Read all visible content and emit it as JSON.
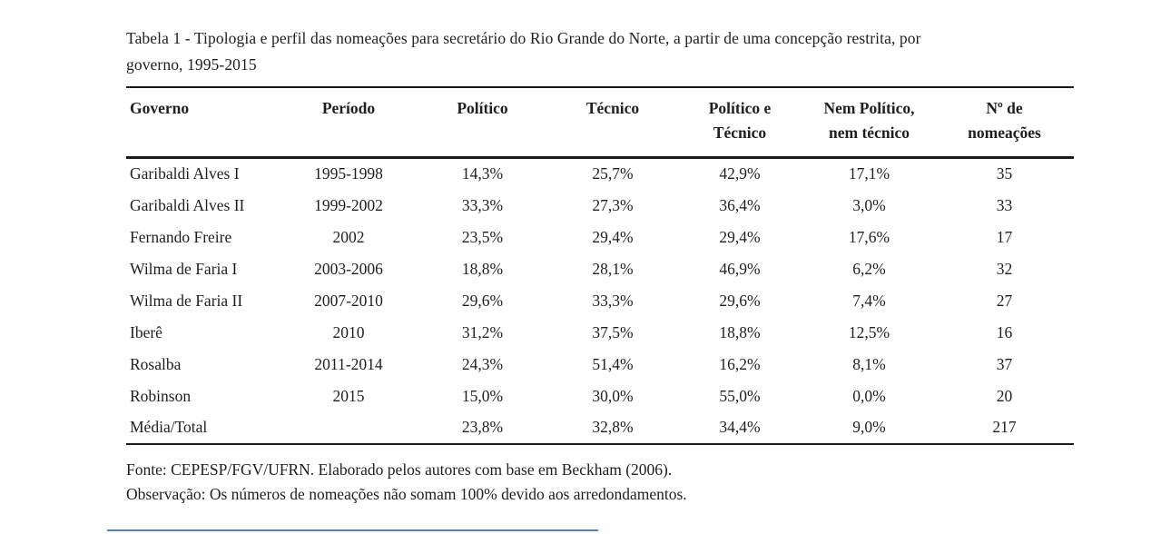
{
  "title": "Tabela 1 - Tipologia e perfil das nomeações para secretário do Rio Grande do Norte, a partir de uma concepção restrita, por\ngoverno, 1995-2015",
  "table": {
    "columns": [
      "Governo",
      "Período",
      "Político",
      "Técnico",
      "Político e\nTécnico",
      "Nem Político,\nnem técnico",
      "Nº de\nnomeações"
    ],
    "rows": [
      [
        "Garibaldi Alves I",
        "1995-1998",
        "14,3%",
        "25,7%",
        "42,9%",
        "17,1%",
        "35"
      ],
      [
        "Garibaldi Alves II",
        "1999-2002",
        "33,3%",
        "27,3%",
        "36,4%",
        "3,0%",
        "33"
      ],
      [
        "Fernando Freire",
        "2002",
        "23,5%",
        "29,4%",
        "29,4%",
        "17,6%",
        "17"
      ],
      [
        "Wilma de Faria I",
        "2003-2006",
        "18,8%",
        "28,1%",
        "46,9%",
        "6,2%",
        "32"
      ],
      [
        "Wilma de Faria II",
        "2007-2010",
        "29,6%",
        "33,3%",
        "29,6%",
        "7,4%",
        "27"
      ],
      [
        "Iberê",
        "2010",
        "31,2%",
        "37,5%",
        "18,8%",
        "12,5%",
        "16"
      ],
      [
        "Rosalba",
        "2011-2014",
        "24,3%",
        "51,4%",
        "16,2%",
        "8,1%",
        "37"
      ],
      [
        "Robinson",
        "2015",
        "15,0%",
        "30,0%",
        "55,0%",
        "0,0%",
        "20"
      ],
      [
        "Média/Total",
        "",
        "23,8%",
        "32,8%",
        "34,4%",
        "9,0%",
        "217"
      ]
    ]
  },
  "footer": {
    "source": "Fonte: CEPESP/FGV/UFRN. Elaborado pelos autores com base em Beckham (2006).",
    "note": "Observação: Os números de nomeações não somam 100% devido aos arredondamentos."
  },
  "chart_data": {
    "type": "table",
    "title": "Tabela 1 - Tipologia e perfil das nomeações para secretário do Rio Grande do Norte, a partir de uma concepção restrita, por governo, 1995-2015",
    "columns": [
      "Governo",
      "Período",
      "Político",
      "Técnico",
      "Político e Técnico",
      "Nem Político, nem técnico",
      "Nº de nomeações"
    ],
    "rows": [
      [
        "Garibaldi Alves I",
        "1995-1998",
        "14,3%",
        "25,7%",
        "42,9%",
        "17,1%",
        "35"
      ],
      [
        "Garibaldi Alves II",
        "1999-2002",
        "33,3%",
        "27,3%",
        "36,4%",
        "3,0%",
        "33"
      ],
      [
        "Fernando Freire",
        "2002",
        "23,5%",
        "29,4%",
        "29,4%",
        "17,6%",
        "17"
      ],
      [
        "Wilma de Faria I",
        "2003-2006",
        "18,8%",
        "28,1%",
        "46,9%",
        "6,2%",
        "32"
      ],
      [
        "Wilma de Faria II",
        "2007-2010",
        "29,6%",
        "33,3%",
        "29,6%",
        "7,4%",
        "27"
      ],
      [
        "Iberê",
        "2010",
        "31,2%",
        "37,5%",
        "18,8%",
        "12,5%",
        "16"
      ],
      [
        "Rosalba",
        "2011-2014",
        "24,3%",
        "51,4%",
        "16,2%",
        "8,1%",
        "37"
      ],
      [
        "Robinson",
        "2015",
        "15,0%",
        "30,0%",
        "55,0%",
        "0,0%",
        "20"
      ],
      [
        "Média/Total",
        "",
        "23,8%",
        "32,8%",
        "34,4%",
        "9,0%",
        "217"
      ]
    ]
  }
}
